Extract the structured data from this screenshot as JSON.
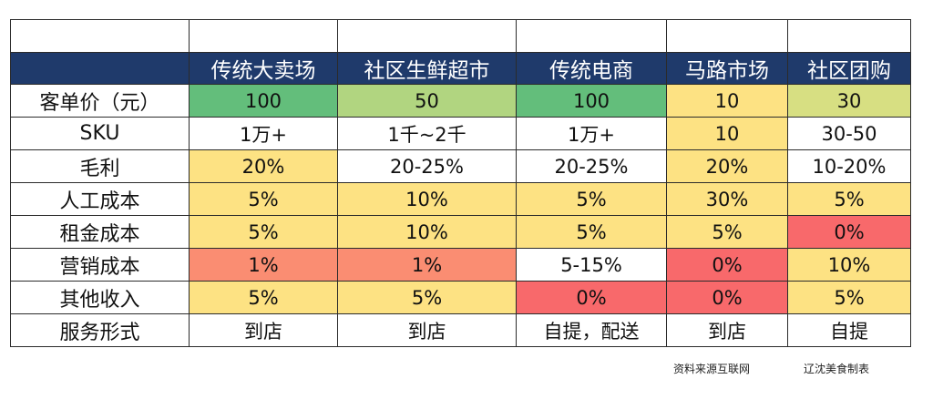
{
  "table": {
    "columns": [
      "传统大卖场",
      "社区生鲜超市",
      "传统电商",
      "马路市场",
      "社区团购"
    ],
    "rows": [
      {
        "label": "客单价（元）",
        "cells": [
          {
            "text": "100",
            "color": "#63be7b"
          },
          {
            "text": "50",
            "color": "#b1d580"
          },
          {
            "text": "100",
            "color": "#63be7b"
          },
          {
            "text": "10",
            "color": "#fde283"
          },
          {
            "text": "30",
            "color": "#d7df82"
          }
        ]
      },
      {
        "label": "SKU",
        "cells": [
          {
            "text": "1万+",
            "color": "#ffffff"
          },
          {
            "text": "1千~2千",
            "color": "#ffffff"
          },
          {
            "text": "1万+",
            "color": "#ffffff"
          },
          {
            "text": "10",
            "color": "#fde283"
          },
          {
            "text": "30-50",
            "color": "#ffffff"
          }
        ]
      },
      {
        "label": "毛利",
        "cells": [
          {
            "text": "20%",
            "color": "#fde283"
          },
          {
            "text": "20-25%",
            "color": "#ffffff"
          },
          {
            "text": "20-25%",
            "color": "#ffffff"
          },
          {
            "text": "20%",
            "color": "#fde283"
          },
          {
            "text": "10-20%",
            "color": "#ffffff"
          }
        ]
      },
      {
        "label": "人工成本",
        "cells": [
          {
            "text": "5%",
            "color": "#fde283"
          },
          {
            "text": "10%",
            "color": "#fde283"
          },
          {
            "text": "5%",
            "color": "#fde283"
          },
          {
            "text": "30%",
            "color": "#fde283"
          },
          {
            "text": "5%",
            "color": "#fde283"
          }
        ]
      },
      {
        "label": "租金成本",
        "cells": [
          {
            "text": "5%",
            "color": "#fde283"
          },
          {
            "text": "10%",
            "color": "#fde283"
          },
          {
            "text": "5%",
            "color": "#fde283"
          },
          {
            "text": "5%",
            "color": "#fde283"
          },
          {
            "text": "0%",
            "color": "#f8696b"
          }
        ]
      },
      {
        "label": "营销成本",
        "cells": [
          {
            "text": "1%",
            "color": "#fa8d72"
          },
          {
            "text": "1%",
            "color": "#fa8d72"
          },
          {
            "text": "5-15%",
            "color": "#ffffff"
          },
          {
            "text": "0%",
            "color": "#f8696b"
          },
          {
            "text": "10%",
            "color": "#fde283"
          }
        ]
      },
      {
        "label": "其他收入",
        "cells": [
          {
            "text": "5%",
            "color": "#fde283"
          },
          {
            "text": "5%",
            "color": "#fde283"
          },
          {
            "text": "0%",
            "color": "#f8696b"
          },
          {
            "text": "0%",
            "color": "#f8696b"
          },
          {
            "text": "5%",
            "color": "#fde283"
          }
        ]
      },
      {
        "label": "服务形式",
        "cells": [
          {
            "text": "到店",
            "color": "#ffffff"
          },
          {
            "text": "到店",
            "color": "#ffffff"
          },
          {
            "text": "自提，配送",
            "color": "#ffffff"
          },
          {
            "text": "到店",
            "color": "#ffffff"
          },
          {
            "text": "自提",
            "color": "#ffffff"
          }
        ]
      }
    ]
  },
  "header_color": "#1f3a6b",
  "footer": {
    "source": "资料来源互联网",
    "credit": "辽沈美食制表"
  }
}
